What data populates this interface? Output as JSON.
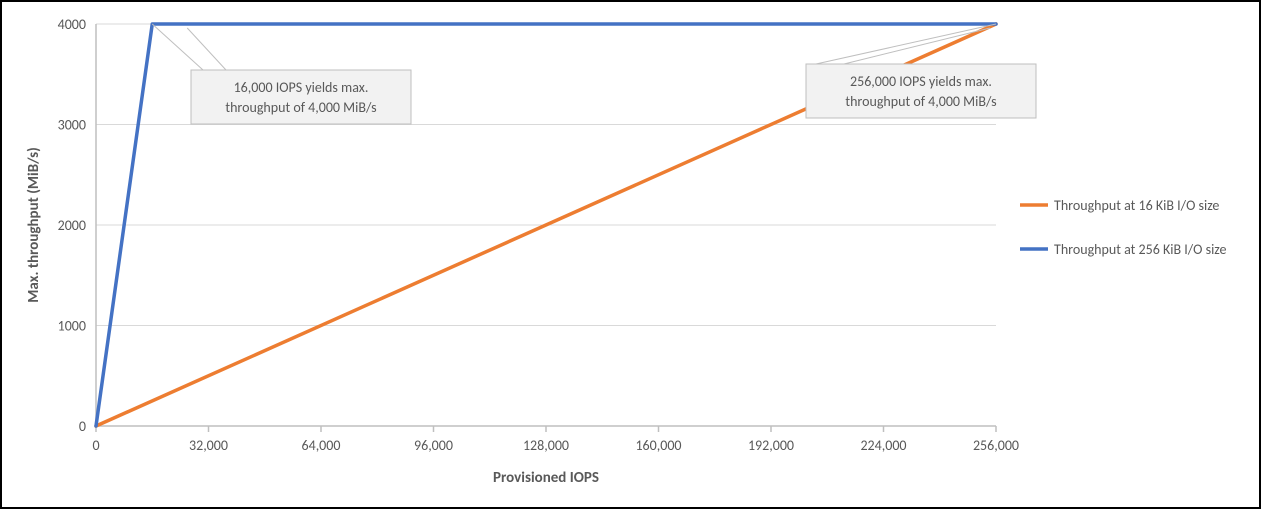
{
  "chart": {
    "type": "line",
    "background_color": "#ffffff",
    "border_color": "#000000",
    "grid_color": "#d9d9d9",
    "axis_line_color": "#bfbfbf",
    "text_color": "#595959",
    "title_fontsize": 15,
    "tick_fontsize": 14,
    "callout_fontsize": 14,
    "legend_fontsize": 14,
    "x_axis": {
      "title": "Provisioned IOPS",
      "min": 0,
      "max": 256000,
      "tick_step": 32000,
      "tick_labels": [
        "0",
        "32,000",
        "64,000",
        "96,000",
        "128,000",
        "160,000",
        "192,000",
        "224,000",
        "256,000"
      ]
    },
    "y_axis": {
      "title": "Max. throughput (MiB/s)",
      "min": 0,
      "max": 4000,
      "tick_step": 1000,
      "tick_labels": [
        "0",
        "1000",
        "2000",
        "3000",
        "4000"
      ]
    },
    "series": [
      {
        "name": "Throughput at 16 KiB I/O size",
        "color": "#ed7d31",
        "line_width": 3.5,
        "points": [
          [
            0,
            0
          ],
          [
            256000,
            4000
          ]
        ]
      },
      {
        "name": "Throughput at 256 KiB I/O size",
        "color": "#4472c4",
        "line_width": 3.5,
        "points": [
          [
            0,
            0
          ],
          [
            16000,
            4000
          ],
          [
            256000,
            4000
          ]
        ]
      }
    ],
    "callouts": [
      {
        "lines": [
          "16,000 IOPS yields max.",
          "throughput of 4,000 MiB/s"
        ],
        "target": [
          16000,
          4000
        ],
        "box_color": "#f2f2f2",
        "box_border": "#bfbfbf"
      },
      {
        "lines": [
          "256,000 IOPS yields max.",
          "throughput of 4,000 MiB/s"
        ],
        "target": [
          256000,
          4000
        ],
        "box_color": "#f2f2f2",
        "box_border": "#bfbfbf"
      }
    ],
    "legend": {
      "items": [
        {
          "label": "Throughput at 16 KiB I/O size",
          "color": "#ed7d31"
        },
        {
          "label": "Throughput at 256 KiB I/O size",
          "color": "#4472c4"
        }
      ]
    }
  }
}
